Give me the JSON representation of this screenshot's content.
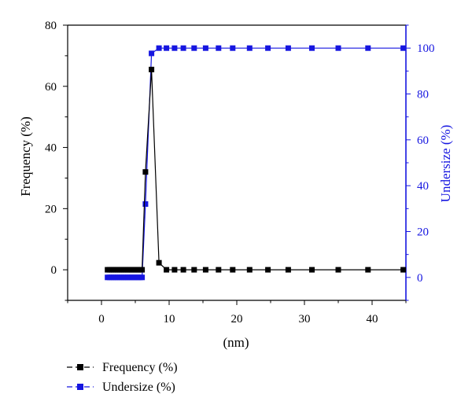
{
  "chart_data": {
    "type": "line",
    "title": "",
    "xlabel": "(nm)",
    "ylabel_left": "Frequency (%)",
    "ylabel_right": "Undersize (%)",
    "xlim": [
      -5,
      45
    ],
    "ylim_left": [
      -10,
      80
    ],
    "ylim_right": [
      -10,
      110
    ],
    "x_ticks": [
      0,
      10,
      20,
      30,
      40
    ],
    "y_ticks_left": [
      0,
      20,
      40,
      60,
      80
    ],
    "y_ticks_right": [
      0,
      20,
      40,
      60,
      80,
      100
    ],
    "grid": false,
    "legend_position": "bottom-left",
    "series": [
      {
        "name": "Frequency (%)",
        "axis": "left",
        "color": "#000000",
        "marker": "square",
        "x": [
          0.9,
          1.2,
          1.5,
          1.8,
          2.1,
          2.4,
          2.7,
          3.0,
          3.3,
          3.6,
          3.9,
          4.2,
          4.5,
          4.8,
          5.1,
          5.4,
          5.7,
          6.0,
          6.5,
          7.4,
          8.5,
          9.6,
          10.8,
          12.1,
          13.7,
          15.4,
          17.3,
          19.4,
          21.9,
          24.6,
          27.6,
          31.1,
          35.0,
          39.4,
          44.6
        ],
        "y": [
          0,
          0,
          0,
          0,
          0,
          0,
          0,
          0,
          0,
          0,
          0,
          0,
          0,
          0,
          0,
          0,
          0,
          0,
          32,
          65.5,
          2.3,
          0,
          0,
          0,
          0,
          0,
          0,
          0,
          0,
          0,
          0,
          0,
          0,
          0,
          0
        ]
      },
      {
        "name": "Undersize (%)",
        "axis": "right",
        "color": "#1616e0",
        "marker": "square",
        "x": [
          0.9,
          1.2,
          1.5,
          1.8,
          2.1,
          2.4,
          2.7,
          3.0,
          3.3,
          3.6,
          3.9,
          4.2,
          4.5,
          4.8,
          5.1,
          5.4,
          5.7,
          6.0,
          6.5,
          7.4,
          8.5,
          9.6,
          10.8,
          12.1,
          13.7,
          15.4,
          17.3,
          19.4,
          21.9,
          24.6,
          27.6,
          31.1,
          35.0,
          39.4,
          44.6
        ],
        "y": [
          0,
          0,
          0,
          0,
          0,
          0,
          0,
          0,
          0,
          0,
          0,
          0,
          0,
          0,
          0,
          0,
          0,
          0,
          32,
          97.7,
          100,
          100,
          100,
          100,
          100,
          100,
          100,
          100,
          100,
          100,
          100,
          100,
          100,
          100,
          100
        ]
      }
    ]
  },
  "colors": {
    "frequency": "#000000",
    "undersize": "#1616e0",
    "right_axis": "#1616e0"
  }
}
